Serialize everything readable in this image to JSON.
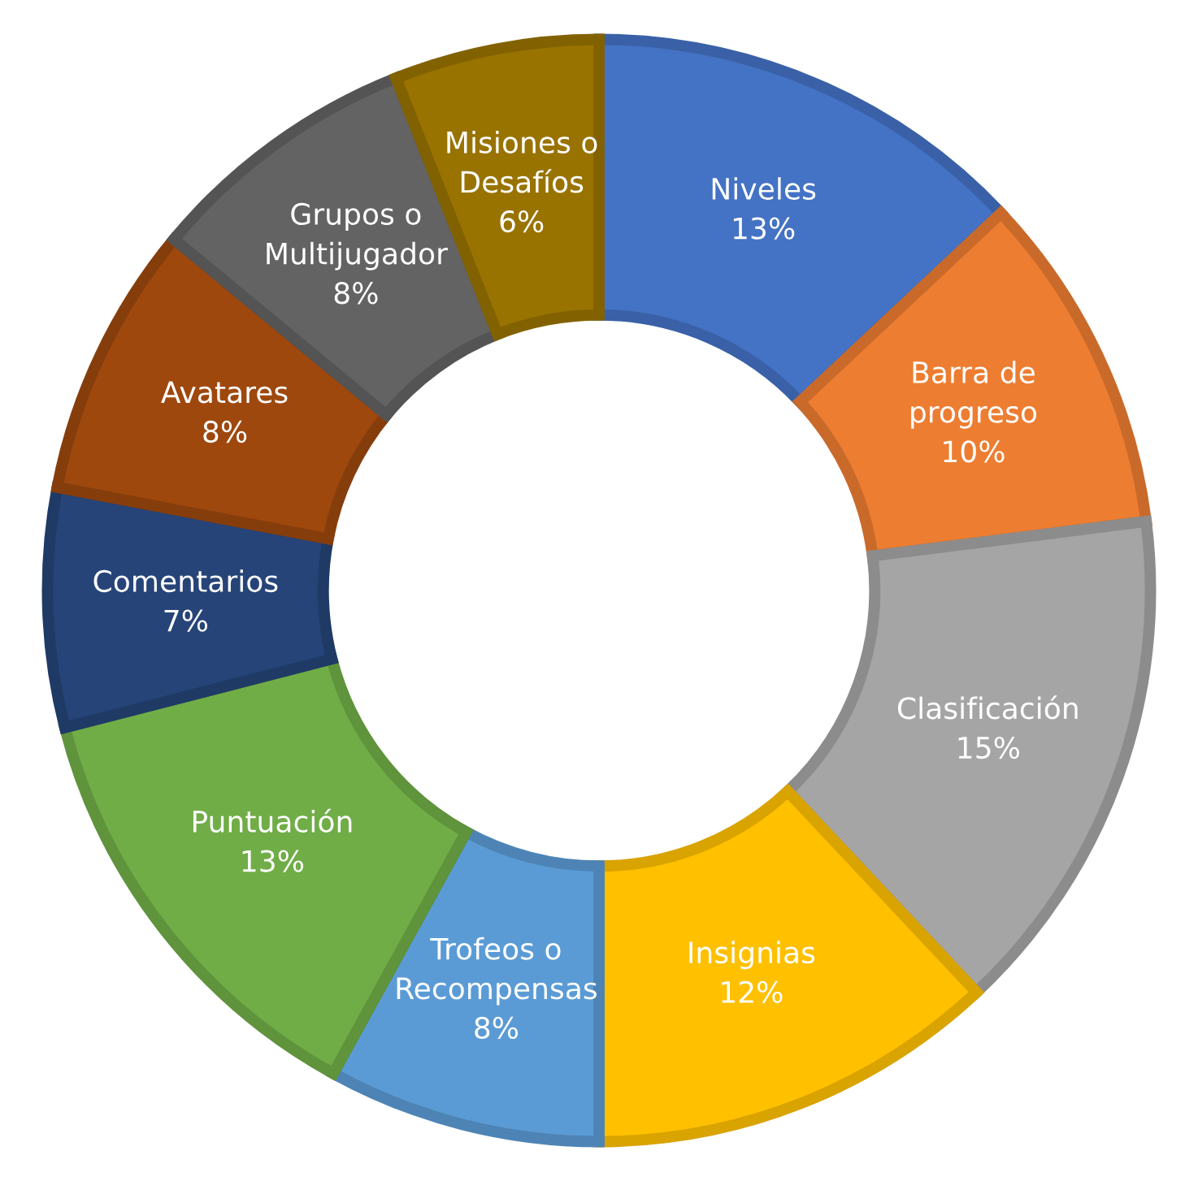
{
  "chart_data": {
    "type": "donut",
    "categories": [
      "Niveles",
      "Barra de progreso",
      "Clasificación",
      "Insignias",
      "Trofeos o Recompensas",
      "Puntuación",
      "Comentarios",
      "Avatares",
      "Grupos o Multijugador",
      "Misiones o Desafíos"
    ],
    "values": [
      13,
      10,
      15,
      12,
      8,
      13,
      7,
      8,
      8,
      6
    ],
    "colors": [
      "#4472c4",
      "#ed7d31",
      "#a5a5a5",
      "#ffc000",
      "#5b9bd5",
      "#70ad47",
      "#264478",
      "#9e480e",
      "#636363",
      "#997300"
    ],
    "value_labels": [
      "13%",
      "10%",
      "15%",
      "12%",
      "8%",
      "13%",
      "7%",
      "8%",
      "8%",
      "6%"
    ],
    "legend": false
  }
}
